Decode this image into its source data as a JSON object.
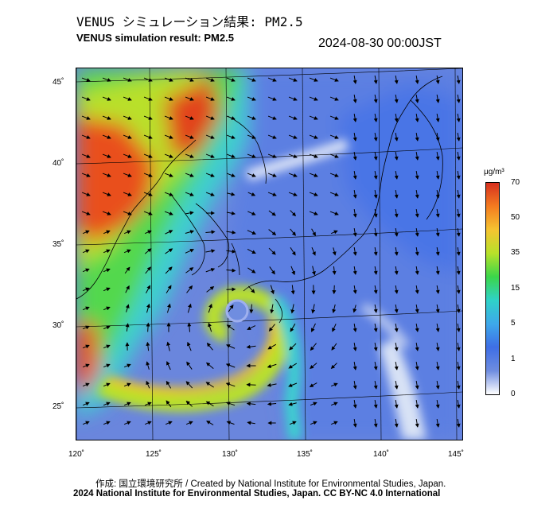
{
  "header": {
    "title_jp": "VENUS シミュレーション結果: PM2.5",
    "title_en": "VENUS simulation result: PM2.5",
    "timestamp": "2024-08-30 00:00JST"
  },
  "map": {
    "region": "East Asia / Japan",
    "lon_ticks": [
      "120˚",
      "125˚",
      "130˚",
      "135˚",
      "140˚",
      "145˚"
    ],
    "lat_ticks": [
      "45˚",
      "40˚",
      "35˚",
      "30˚",
      "25˚"
    ],
    "lon_values": [
      120,
      125,
      130,
      135,
      140,
      145
    ],
    "lat_values": [
      45,
      40,
      35,
      30,
      25
    ],
    "overlay": "PM2.5 concentration with wind vectors",
    "typhoon_center": {
      "lon": 130.6,
      "lat": 31.0
    }
  },
  "colorbar": {
    "unit": "μg/m³",
    "labels": [
      "70",
      "50",
      "35",
      "15",
      "5",
      "1",
      "0"
    ],
    "values": [
      70,
      50,
      35,
      15,
      5,
      1,
      0
    ],
    "colors": [
      "#d7301f",
      "#f47c20",
      "#f5c431",
      "#b7e12a",
      "#3bd64a",
      "#2fd2c8",
      "#3ea8ea",
      "#3e6ee6",
      "#6f8de0",
      "#ffffff"
    ]
  },
  "footer": {
    "credit": "作成: 国立環境研究所 / Created by National Institute for Environmental Studies, Japan.",
    "copyright": "2024 National Institute for Environmental Studies, Japan. CC BY-NC 4.0 International"
  }
}
